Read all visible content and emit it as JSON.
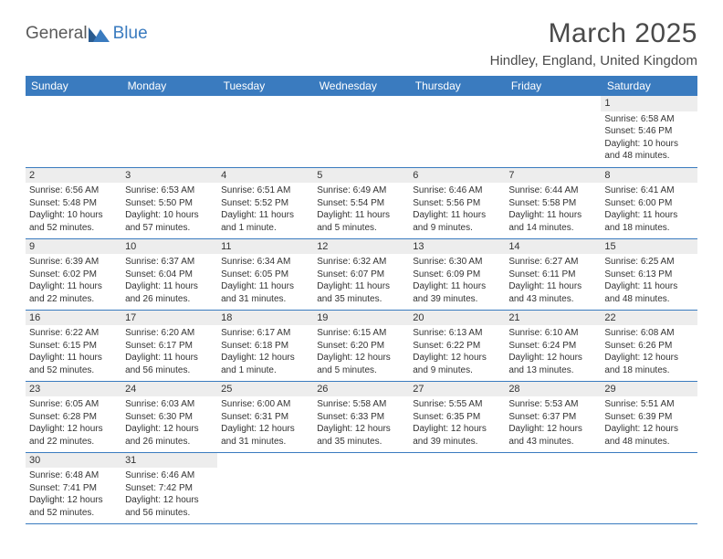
{
  "brand": {
    "part1": "General",
    "part2": "Blue",
    "text_color_general": "#5a5a5a",
    "text_color_blue": "#3a7bbf",
    "icon_colors": [
      "#2a5b8f",
      "#3a7bbf"
    ]
  },
  "title": "March 2025",
  "location": "Hindley, England, United Kingdom",
  "header_bg": "#3a7bbf",
  "header_text": "#ffffff",
  "day_bg": "#ededed",
  "border_color": "#3a7bbf",
  "weekdays": [
    "Sunday",
    "Monday",
    "Tuesday",
    "Wednesday",
    "Thursday",
    "Friday",
    "Saturday"
  ],
  "weeks": [
    [
      {
        "day": "",
        "sunrise": "",
        "sunset": "",
        "daylight": ""
      },
      {
        "day": "",
        "sunrise": "",
        "sunset": "",
        "daylight": ""
      },
      {
        "day": "",
        "sunrise": "",
        "sunset": "",
        "daylight": ""
      },
      {
        "day": "",
        "sunrise": "",
        "sunset": "",
        "daylight": ""
      },
      {
        "day": "",
        "sunrise": "",
        "sunset": "",
        "daylight": ""
      },
      {
        "day": "",
        "sunrise": "",
        "sunset": "",
        "daylight": ""
      },
      {
        "day": "1",
        "sunrise": "Sunrise: 6:58 AM",
        "sunset": "Sunset: 5:46 PM",
        "daylight": "Daylight: 10 hours and 48 minutes."
      }
    ],
    [
      {
        "day": "2",
        "sunrise": "Sunrise: 6:56 AM",
        "sunset": "Sunset: 5:48 PM",
        "daylight": "Daylight: 10 hours and 52 minutes."
      },
      {
        "day": "3",
        "sunrise": "Sunrise: 6:53 AM",
        "sunset": "Sunset: 5:50 PM",
        "daylight": "Daylight: 10 hours and 57 minutes."
      },
      {
        "day": "4",
        "sunrise": "Sunrise: 6:51 AM",
        "sunset": "Sunset: 5:52 PM",
        "daylight": "Daylight: 11 hours and 1 minute."
      },
      {
        "day": "5",
        "sunrise": "Sunrise: 6:49 AM",
        "sunset": "Sunset: 5:54 PM",
        "daylight": "Daylight: 11 hours and 5 minutes."
      },
      {
        "day": "6",
        "sunrise": "Sunrise: 6:46 AM",
        "sunset": "Sunset: 5:56 PM",
        "daylight": "Daylight: 11 hours and 9 minutes."
      },
      {
        "day": "7",
        "sunrise": "Sunrise: 6:44 AM",
        "sunset": "Sunset: 5:58 PM",
        "daylight": "Daylight: 11 hours and 14 minutes."
      },
      {
        "day": "8",
        "sunrise": "Sunrise: 6:41 AM",
        "sunset": "Sunset: 6:00 PM",
        "daylight": "Daylight: 11 hours and 18 minutes."
      }
    ],
    [
      {
        "day": "9",
        "sunrise": "Sunrise: 6:39 AM",
        "sunset": "Sunset: 6:02 PM",
        "daylight": "Daylight: 11 hours and 22 minutes."
      },
      {
        "day": "10",
        "sunrise": "Sunrise: 6:37 AM",
        "sunset": "Sunset: 6:04 PM",
        "daylight": "Daylight: 11 hours and 26 minutes."
      },
      {
        "day": "11",
        "sunrise": "Sunrise: 6:34 AM",
        "sunset": "Sunset: 6:05 PM",
        "daylight": "Daylight: 11 hours and 31 minutes."
      },
      {
        "day": "12",
        "sunrise": "Sunrise: 6:32 AM",
        "sunset": "Sunset: 6:07 PM",
        "daylight": "Daylight: 11 hours and 35 minutes."
      },
      {
        "day": "13",
        "sunrise": "Sunrise: 6:30 AM",
        "sunset": "Sunset: 6:09 PM",
        "daylight": "Daylight: 11 hours and 39 minutes."
      },
      {
        "day": "14",
        "sunrise": "Sunrise: 6:27 AM",
        "sunset": "Sunset: 6:11 PM",
        "daylight": "Daylight: 11 hours and 43 minutes."
      },
      {
        "day": "15",
        "sunrise": "Sunrise: 6:25 AM",
        "sunset": "Sunset: 6:13 PM",
        "daylight": "Daylight: 11 hours and 48 minutes."
      }
    ],
    [
      {
        "day": "16",
        "sunrise": "Sunrise: 6:22 AM",
        "sunset": "Sunset: 6:15 PM",
        "daylight": "Daylight: 11 hours and 52 minutes."
      },
      {
        "day": "17",
        "sunrise": "Sunrise: 6:20 AM",
        "sunset": "Sunset: 6:17 PM",
        "daylight": "Daylight: 11 hours and 56 minutes."
      },
      {
        "day": "18",
        "sunrise": "Sunrise: 6:17 AM",
        "sunset": "Sunset: 6:18 PM",
        "daylight": "Daylight: 12 hours and 1 minute."
      },
      {
        "day": "19",
        "sunrise": "Sunrise: 6:15 AM",
        "sunset": "Sunset: 6:20 PM",
        "daylight": "Daylight: 12 hours and 5 minutes."
      },
      {
        "day": "20",
        "sunrise": "Sunrise: 6:13 AM",
        "sunset": "Sunset: 6:22 PM",
        "daylight": "Daylight: 12 hours and 9 minutes."
      },
      {
        "day": "21",
        "sunrise": "Sunrise: 6:10 AM",
        "sunset": "Sunset: 6:24 PM",
        "daylight": "Daylight: 12 hours and 13 minutes."
      },
      {
        "day": "22",
        "sunrise": "Sunrise: 6:08 AM",
        "sunset": "Sunset: 6:26 PM",
        "daylight": "Daylight: 12 hours and 18 minutes."
      }
    ],
    [
      {
        "day": "23",
        "sunrise": "Sunrise: 6:05 AM",
        "sunset": "Sunset: 6:28 PM",
        "daylight": "Daylight: 12 hours and 22 minutes."
      },
      {
        "day": "24",
        "sunrise": "Sunrise: 6:03 AM",
        "sunset": "Sunset: 6:30 PM",
        "daylight": "Daylight: 12 hours and 26 minutes."
      },
      {
        "day": "25",
        "sunrise": "Sunrise: 6:00 AM",
        "sunset": "Sunset: 6:31 PM",
        "daylight": "Daylight: 12 hours and 31 minutes."
      },
      {
        "day": "26",
        "sunrise": "Sunrise: 5:58 AM",
        "sunset": "Sunset: 6:33 PM",
        "daylight": "Daylight: 12 hours and 35 minutes."
      },
      {
        "day": "27",
        "sunrise": "Sunrise: 5:55 AM",
        "sunset": "Sunset: 6:35 PM",
        "daylight": "Daylight: 12 hours and 39 minutes."
      },
      {
        "day": "28",
        "sunrise": "Sunrise: 5:53 AM",
        "sunset": "Sunset: 6:37 PM",
        "daylight": "Daylight: 12 hours and 43 minutes."
      },
      {
        "day": "29",
        "sunrise": "Sunrise: 5:51 AM",
        "sunset": "Sunset: 6:39 PM",
        "daylight": "Daylight: 12 hours and 48 minutes."
      }
    ],
    [
      {
        "day": "30",
        "sunrise": "Sunrise: 6:48 AM",
        "sunset": "Sunset: 7:41 PM",
        "daylight": "Daylight: 12 hours and 52 minutes."
      },
      {
        "day": "31",
        "sunrise": "Sunrise: 6:46 AM",
        "sunset": "Sunset: 7:42 PM",
        "daylight": "Daylight: 12 hours and 56 minutes."
      },
      {
        "day": "",
        "sunrise": "",
        "sunset": "",
        "daylight": ""
      },
      {
        "day": "",
        "sunrise": "",
        "sunset": "",
        "daylight": ""
      },
      {
        "day": "",
        "sunrise": "",
        "sunset": "",
        "daylight": ""
      },
      {
        "day": "",
        "sunrise": "",
        "sunset": "",
        "daylight": ""
      },
      {
        "day": "",
        "sunrise": "",
        "sunset": "",
        "daylight": ""
      }
    ]
  ]
}
